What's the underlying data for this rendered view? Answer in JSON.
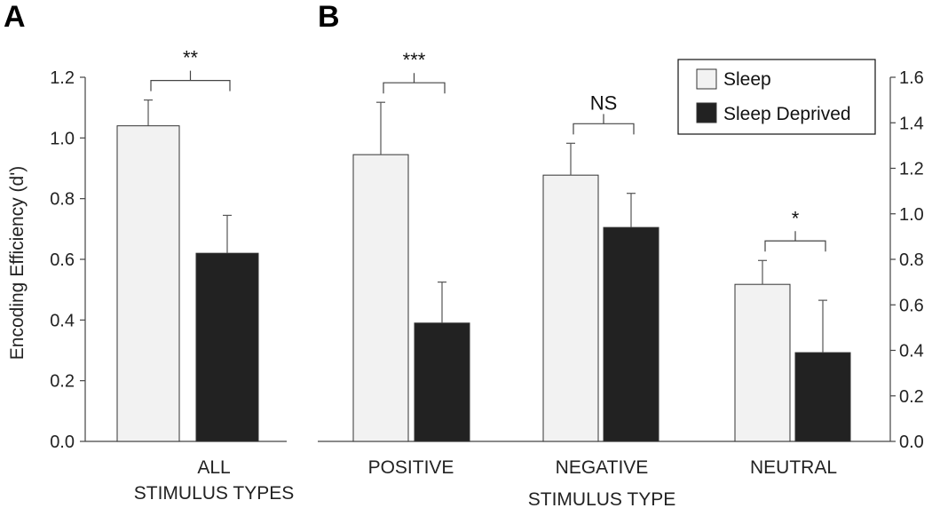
{
  "chart_data": [
    {
      "panel": "A",
      "type": "bar",
      "ylabel": "Encoding Efficiency (d')",
      "ylim": [
        0,
        1.2
      ],
      "yticks": [
        "0.0",
        "0.2",
        "0.4",
        "0.6",
        "0.8",
        "1.0",
        "1.2"
      ],
      "categories": [
        [
          "ALL",
          "STIMULUS TYPES"
        ]
      ],
      "series": [
        {
          "name": "Sleep",
          "values": [
            1.04
          ],
          "errors": [
            0.085
          ]
        },
        {
          "name": "Sleep Deprived",
          "values": [
            0.62
          ],
          "errors": [
            0.125
          ]
        }
      ],
      "significance": [
        "**"
      ]
    },
    {
      "panel": "B",
      "type": "bar",
      "xlabel": "STIMULUS TYPE",
      "ylim": [
        0,
        1.6
      ],
      "yticks": [
        "0.0",
        "0.2",
        "0.4",
        "0.6",
        "0.8",
        "1.0",
        "1.2",
        "1.4",
        "1.6"
      ],
      "categories": [
        [
          "POSITIVE"
        ],
        [
          "NEGATIVE"
        ],
        [
          "NEUTRAL"
        ]
      ],
      "series": [
        {
          "name": "Sleep",
          "values": [
            1.26,
            1.17,
            0.69
          ],
          "errors": [
            0.23,
            0.14,
            0.105
          ]
        },
        {
          "name": "Sleep Deprived",
          "values": [
            0.52,
            0.94,
            0.39
          ],
          "errors": [
            0.18,
            0.15,
            0.23
          ]
        }
      ],
      "significance": [
        "***",
        "NS",
        "*"
      ],
      "legend": {
        "position": "top-right",
        "entries": [
          "Sleep",
          "Sleep Deprived"
        ]
      }
    }
  ],
  "colors": {
    "sleep": "#f2f2f2",
    "sleep_deprived": "#222222",
    "axis": "#444444"
  }
}
